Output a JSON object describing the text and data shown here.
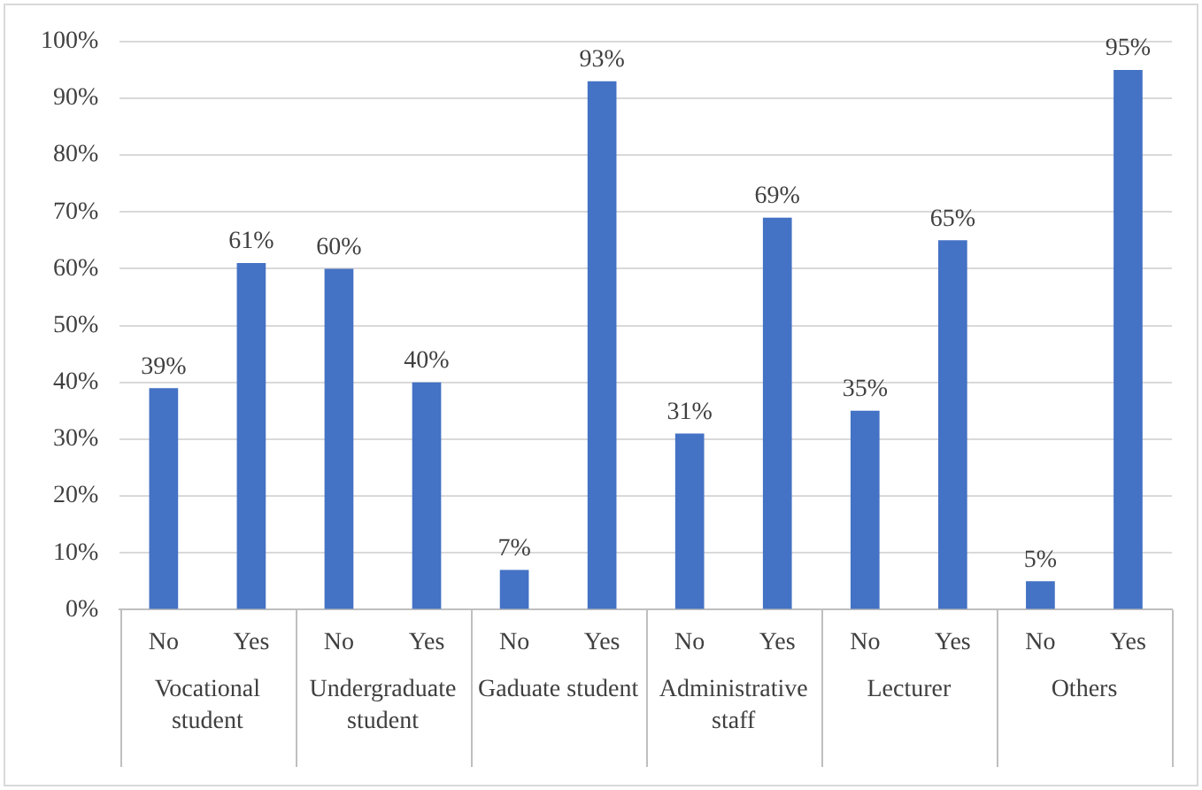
{
  "chart_data": {
    "type": "bar",
    "categories": [
      "No",
      "Yes",
      "No",
      "Yes",
      "No",
      "Yes",
      "No",
      "Yes",
      "No",
      "Yes",
      "No",
      "Yes"
    ],
    "values": [
      39,
      61,
      60,
      40,
      7,
      93,
      31,
      69,
      35,
      65,
      5,
      95
    ],
    "value_labels": [
      "39%",
      "61%",
      "60%",
      "40%",
      "7%",
      "93%",
      "31%",
      "69%",
      "35%",
      "65%",
      "5%",
      "95%"
    ],
    "color": "#4472c4",
    "ylim": [
      0,
      100
    ],
    "yticks": [
      {
        "value": 0,
        "label": "0%"
      },
      {
        "value": 10,
        "label": "10%"
      },
      {
        "value": 20,
        "label": "20%"
      },
      {
        "value": 30,
        "label": "30%"
      },
      {
        "value": 40,
        "label": "40%"
      },
      {
        "value": 50,
        "label": "50%"
      },
      {
        "value": 60,
        "label": "60%"
      },
      {
        "value": 70,
        "label": "70%"
      },
      {
        "value": 80,
        "label": "80%"
      },
      {
        "value": 90,
        "label": "90%"
      },
      {
        "value": 100,
        "label": "100%"
      }
    ],
    "annotations": [
      "Vocational student",
      "Undergraduate student",
      "Gaduate student",
      "Administrative staff",
      "Lecturer",
      "Others"
    ],
    "grid": "y",
    "legend": false
  }
}
